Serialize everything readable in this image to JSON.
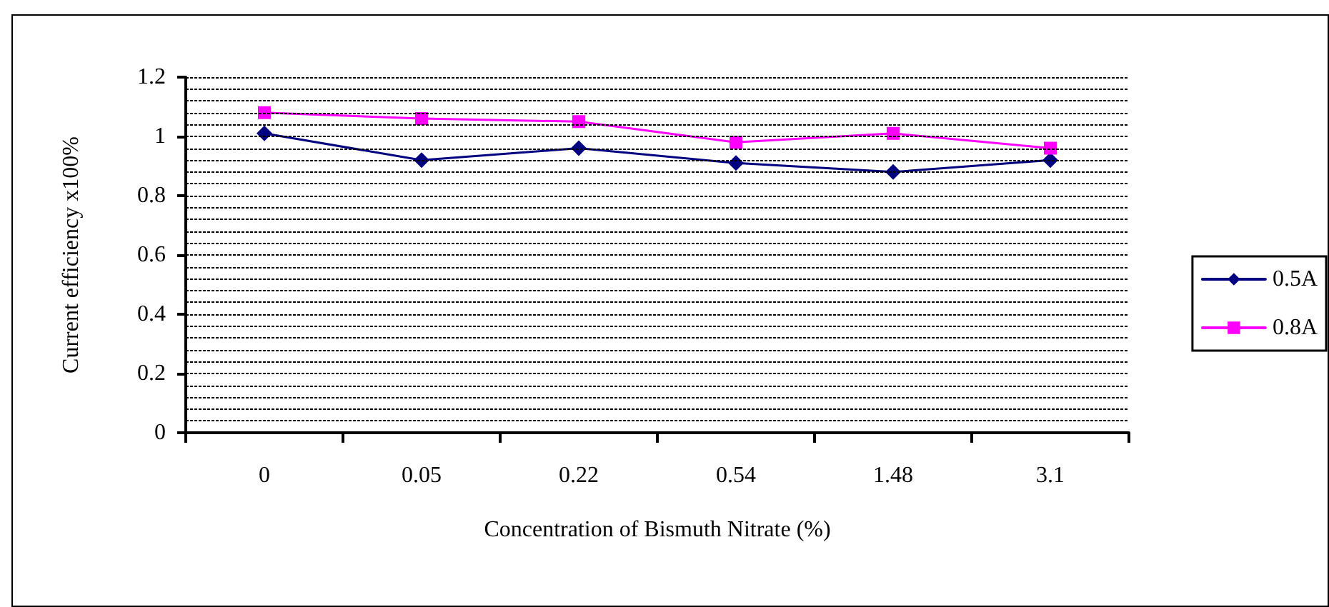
{
  "chart_data": {
    "type": "line",
    "xlabel": "Concentration of Bismuth Nitrate (%)",
    "ylabel": "Current efficiency x100%",
    "categories": [
      "0",
      "0.05",
      "0.22",
      "0.54",
      "1.48",
      "3.1"
    ],
    "series": [
      {
        "name": "0.5A",
        "color": "#000080",
        "marker": "diamond",
        "values": [
          1.01,
          0.92,
          0.96,
          0.91,
          0.88,
          0.92
        ]
      },
      {
        "name": "0.8A",
        "color": "#ff00ff",
        "marker": "square",
        "values": [
          1.08,
          1.06,
          1.05,
          0.98,
          1.01,
          0.96
        ]
      }
    ],
    "ylim": [
      0,
      1.2
    ],
    "yticks": [
      0,
      {
        "value": 0.04,
        "label": null
      },
      {
        "value": 0.08,
        "label": null
      },
      {
        "value": 0.12,
        "label": null
      },
      {
        "value": 0.16,
        "label": null
      },
      0.2,
      {
        "value": 0.24,
        "label": null
      },
      {
        "value": 0.28,
        "label": null
      },
      {
        "value": 0.32,
        "label": null
      },
      {
        "value": 0.36,
        "label": null
      },
      0.4,
      {
        "value": 0.44,
        "label": null
      },
      {
        "value": 0.48,
        "label": null
      },
      {
        "value": 0.52,
        "label": null
      },
      {
        "value": 0.56,
        "label": null
      },
      0.6,
      {
        "value": 0.64,
        "label": null
      },
      {
        "value": 0.68,
        "label": null
      },
      {
        "value": 0.72,
        "label": null
      },
      {
        "value": 0.76,
        "label": null
      },
      0.8,
      {
        "value": 0.84,
        "label": null
      },
      {
        "value": 0.88,
        "label": null
      },
      {
        "value": 0.92,
        "label": null
      },
      {
        "value": 0.96,
        "label": null
      },
      1,
      {
        "value": 1.04,
        "label": null
      },
      {
        "value": 1.08,
        "label": null
      },
      {
        "value": 1.12,
        "label": null
      },
      {
        "value": 1.16,
        "label": null
      },
      {
        "value": 1.2,
        "label": "1.2"
      }
    ],
    "grid": "y",
    "legend": "right",
    "line_style": "solid"
  }
}
